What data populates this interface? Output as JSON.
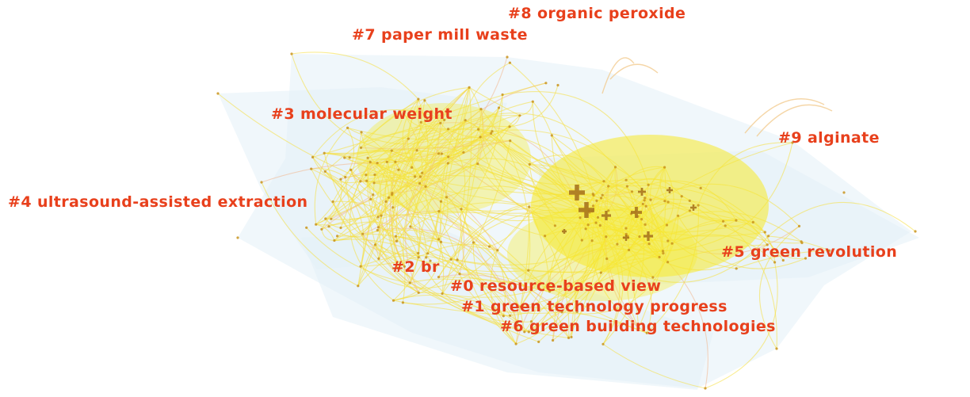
{
  "network": {
    "link_color": "#f5df3c",
    "hull_color": "#e4f1f7",
    "node_color": "#c9941f",
    "hub_color": "#a8741e",
    "label_color": "#e8401c"
  },
  "clusters": [
    {
      "id": "8",
      "label": "#8 organic peroxide"
    },
    {
      "id": "7",
      "label": "#7 paper mill waste"
    },
    {
      "id": "3",
      "label": "#3 molecular weight"
    },
    {
      "id": "9",
      "label": "#9 alginate"
    },
    {
      "id": "4",
      "label": "#4 ultrasound-assisted extraction"
    },
    {
      "id": "5",
      "label": "#5 green revolution"
    },
    {
      "id": "2",
      "label": "#2 br"
    },
    {
      "id": "0",
      "label": "#0 resource-based view"
    },
    {
      "id": "1",
      "label": "#1 green technology progress"
    },
    {
      "id": "6",
      "label": "#6 green building technologies"
    }
  ]
}
